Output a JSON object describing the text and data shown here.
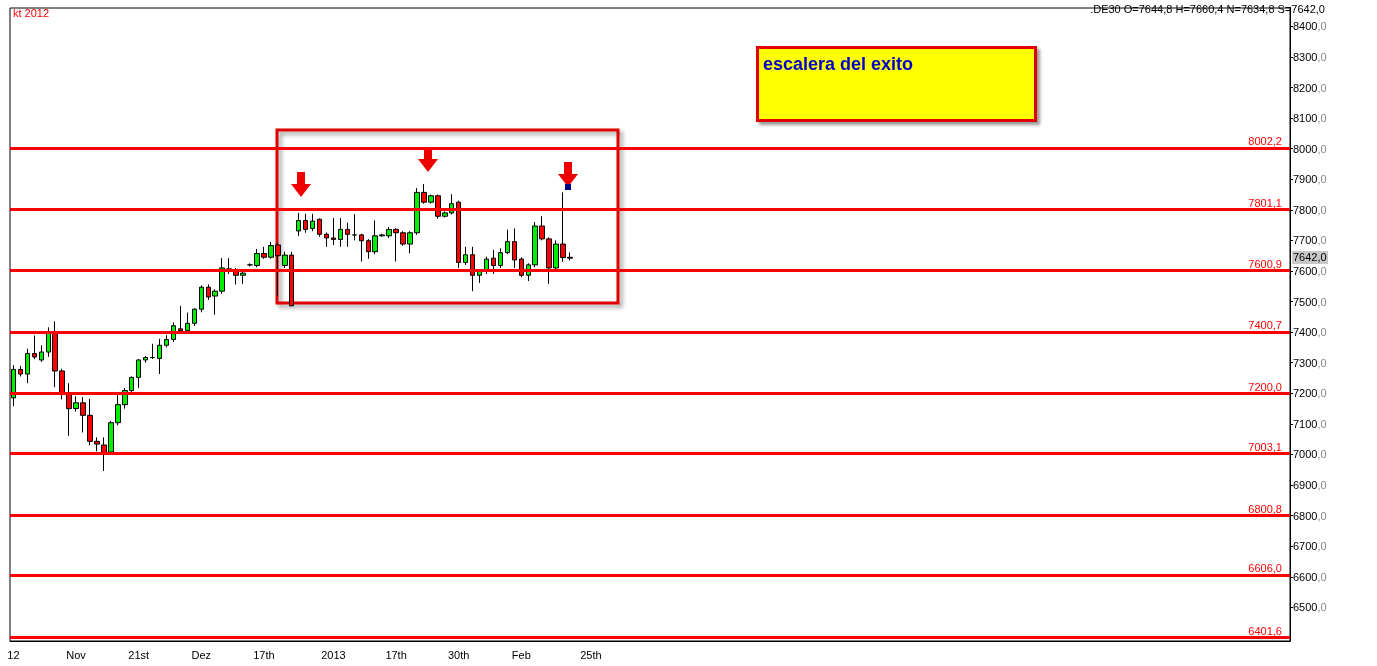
{
  "chart_data": {
    "type": "candlestick",
    "title": "kt 2012",
    "annotations": [
      ".DE30 O=7644,8 H=7660,4 N=7634,8 S=7642,0",
      "escalera del exito",
      {
        "text": "7642,0",
        "y": 7642
      }
    ],
    "categories": [
      "12",
      null,
      null,
      null,
      null,
      null,
      null,
      null,
      null,
      "Nov",
      null,
      null,
      null,
      null,
      null,
      null,
      null,
      null,
      "21st",
      null,
      null,
      null,
      null,
      null,
      null,
      null,
      null,
      "Dez",
      null,
      null,
      null,
      null,
      null,
      null,
      null,
      null,
      "17th",
      null,
      null,
      null,
      null,
      null,
      null,
      null,
      null,
      null,
      "2013",
      null,
      null,
      null,
      null,
      null,
      null,
      null,
      null,
      "17th",
      null,
      null,
      null,
      null,
      null,
      null,
      null,
      null,
      "30th",
      null,
      null,
      null,
      null,
      null,
      null,
      null,
      null,
      "Feb",
      null,
      null,
      null,
      null,
      null,
      null,
      null,
      null,
      null,
      "25th",
      null,
      null,
      null,
      null,
      null,
      null,
      null,
      null,
      null,
      null,
      null,
      null,
      null,
      null,
      null,
      null,
      null,
      null,
      null,
      null,
      null,
      null,
      null,
      null,
      null,
      null,
      null,
      null,
      null,
      null,
      null,
      null,
      null,
      null,
      null,
      null,
      null,
      null,
      null,
      null,
      null,
      null,
      null,
      null,
      null,
      null,
      null,
      null,
      null,
      null,
      null,
      null,
      null,
      null,
      null,
      null,
      null,
      null,
      null,
      null,
      null,
      null,
      null,
      null,
      null,
      null,
      null,
      null,
      null,
      null,
      null,
      null,
      null,
      null,
      null,
      null,
      null,
      null,
      null,
      null,
      null,
      null,
      null,
      null,
      null,
      null,
      null,
      null,
      null,
      null,
      null,
      null,
      null,
      null,
      null,
      null,
      null,
      null,
      null,
      null
    ],
    "ohlc": [
      [
        7185,
        7292,
        7158,
        7278
      ],
      [
        7278,
        7290,
        7255,
        7263
      ],
      [
        7263,
        7346,
        7233,
        7330
      ],
      [
        7330,
        7389,
        7312,
        7319
      ],
      [
        7309,
        7357,
        7303,
        7335
      ],
      [
        7335,
        7416,
        7319,
        7400
      ],
      [
        7400,
        7435,
        7220,
        7273
      ],
      [
        7273,
        7280,
        7180,
        7201
      ],
      [
        7201,
        7233,
        7061,
        7150
      ],
      [
        7150,
        7190,
        7140,
        7169
      ],
      [
        7169,
        7188,
        7072,
        7128
      ],
      [
        7128,
        7182,
        7030,
        7043
      ],
      [
        7043,
        7056,
        7010,
        7034
      ],
      [
        7031,
        7056,
        6946,
        7002
      ],
      [
        7008,
        7110,
        7000,
        7104
      ],
      [
        7104,
        7196,
        7095,
        7163
      ],
      [
        7163,
        7217,
        7150,
        7209
      ],
      [
        7209,
        7255,
        7200,
        7252
      ],
      [
        7252,
        7312,
        7217,
        7309
      ],
      [
        7309,
        7322,
        7300,
        7317
      ],
      [
        7317,
        7362,
        7312,
        7317
      ],
      [
        7314,
        7378,
        7263,
        7357
      ],
      [
        7357,
        7390,
        7350,
        7376
      ],
      [
        7376,
        7432,
        7368,
        7421
      ],
      [
        7411,
        7486,
        7400,
        7405
      ],
      [
        7405,
        7464,
        7400,
        7429
      ],
      [
        7429,
        7478,
        7420,
        7475
      ],
      [
        7475,
        7553,
        7465,
        7547
      ],
      [
        7547,
        7556,
        7505,
        7515
      ],
      [
        7518,
        7540,
        7457,
        7534
      ],
      [
        7534,
        7642,
        7525,
        7610
      ],
      [
        7607,
        7642,
        7590,
        7599
      ],
      [
        7599,
        7610,
        7556,
        7586
      ],
      [
        7586,
        7600,
        7558,
        7593
      ],
      [
        7620,
        7625,
        7615,
        7620
      ],
      [
        7618,
        7672,
        7612,
        7657
      ],
      [
        7657,
        7679,
        7640,
        7645
      ],
      [
        7645,
        7695,
        7640,
        7683
      ],
      [
        7685,
        7692,
        7518,
        7650
      ],
      [
        7618,
        7663,
        7610,
        7652
      ],
      [
        7652,
        7663,
        7486,
        7486
      ],
      [
        7731,
        7790,
        7714,
        7765
      ],
      [
        7765,
        7787,
        7725,
        7736
      ],
      [
        7739,
        7787,
        7730,
        7763
      ],
      [
        7769,
        7772,
        7712,
        7720
      ],
      [
        7720,
        7726,
        7679,
        7708
      ],
      [
        7708,
        7773,
        7685,
        7703
      ],
      [
        7703,
        7773,
        7679,
        7736
      ],
      [
        7736,
        7758,
        7679,
        7720
      ],
      [
        7718,
        7786,
        7700,
        7718
      ],
      [
        7718,
        7722,
        7631,
        7699
      ],
      [
        7699,
        7704,
        7640,
        7663
      ],
      [
        7663,
        7765,
        7655,
        7715
      ],
      [
        7715,
        7722,
        7712,
        7718
      ],
      [
        7715,
        7744,
        7708,
        7736
      ],
      [
        7736,
        7740,
        7631,
        7725
      ],
      [
        7725,
        7730,
        7682,
        7688
      ],
      [
        7688,
        7730,
        7658,
        7725
      ],
      [
        7725,
        7871,
        7718,
        7857
      ],
      [
        7857,
        7884,
        7820,
        7825
      ],
      [
        7825,
        7850,
        7820,
        7846
      ],
      [
        7846,
        7850,
        7771,
        7779
      ],
      [
        7779,
        7795,
        7775,
        7790
      ],
      [
        7790,
        7851,
        7785,
        7820
      ],
      [
        7825,
        7830,
        7610,
        7628
      ],
      [
        7628,
        7679,
        7620,
        7653
      ],
      [
        7653,
        7679,
        7534,
        7586
      ],
      [
        7586,
        7605,
        7561,
        7599
      ],
      [
        7599,
        7647,
        7590,
        7639
      ],
      [
        7642,
        7669,
        7590,
        7618
      ],
      [
        7618,
        7674,
        7610,
        7660
      ],
      [
        7660,
        7735,
        7655,
        7696
      ],
      [
        7696,
        7739,
        7610,
        7636
      ],
      [
        7639,
        7645,
        7580,
        7586
      ],
      [
        7586,
        7625,
        7567,
        7620
      ],
      [
        7620,
        7760,
        7612,
        7747
      ],
      [
        7747,
        7779,
        7700,
        7705
      ],
      [
        7705,
        7710,
        7558,
        7610
      ],
      [
        7610,
        7700,
        7600,
        7688
      ],
      [
        7688,
        7857,
        7630,
        7644
      ],
      [
        7644.8,
        7660.4,
        7634.8,
        7642.0
      ],
      null,
      null,
      null,
      null,
      null,
      null,
      null,
      null,
      null,
      null,
      null,
      null,
      null,
      null,
      null,
      null,
      null,
      null,
      null,
      null,
      null,
      null,
      null,
      null,
      null,
      null,
      null,
      null,
      null,
      null,
      null,
      null,
      null,
      null,
      null,
      null,
      null,
      null,
      null,
      null,
      null,
      null,
      null,
      null,
      null,
      null,
      null,
      null,
      null,
      null,
      null,
      null,
      null,
      null,
      null,
      null,
      null,
      null,
      null,
      null,
      null,
      null,
      null,
      null,
      null,
      null,
      null,
      null,
      null,
      null,
      null,
      null,
      null,
      null,
      null,
      null,
      null,
      null,
      null,
      null,
      null,
      null,
      null,
      null,
      null,
      null,
      null,
      null,
      null,
      null,
      null,
      null,
      null,
      null,
      null,
      null,
      null,
      null,
      null,
      null,
      null,
      null,
      null
    ],
    "ylim": [
      6390,
      8460
    ],
    "yticks": [
      {
        "value": 6500,
        "label": "6500,0"
      },
      {
        "value": 6600,
        "label": "6600,0"
      },
      {
        "value": 6700,
        "label": "6700,0"
      },
      {
        "value": 6800,
        "label": "6800,0"
      },
      {
        "value": 6900,
        "label": "6900,0"
      },
      {
        "value": 7000,
        "label": "7000,0"
      },
      {
        "value": 7100,
        "label": "7100,0"
      },
      {
        "value": 7200,
        "label": "7200,0"
      },
      {
        "value": 7300,
        "label": "7300,0"
      },
      {
        "value": 7400,
        "label": "7400,0"
      },
      {
        "value": 7500,
        "label": "7500,0"
      },
      {
        "value": 7600,
        "label": "7600,0"
      },
      {
        "value": 7700,
        "label": "7700,0"
      },
      {
        "value": 7800,
        "label": "7800,0"
      },
      {
        "value": 7900,
        "label": "7900,0"
      },
      {
        "value": 8000,
        "label": "8000,0"
      },
      {
        "value": 8100,
        "label": "8100,0"
      },
      {
        "value": 8200,
        "label": "8200,0"
      },
      {
        "value": 8300,
        "label": "8300,0"
      },
      {
        "value": 8400,
        "label": "8400,0"
      }
    ],
    "ref_lines": [
      {
        "axis": "y",
        "value": 8002.2,
        "label": "8002,2",
        "color": "#ff0000"
      },
      {
        "axis": "y",
        "value": 7801.1,
        "label": "7801,1",
        "color": "#ff0000"
      },
      {
        "axis": "y",
        "value": 7600.9,
        "label": "7600,9",
        "color": "#ff0000"
      },
      {
        "axis": "y",
        "value": 7400.7,
        "label": "7400,7",
        "color": "#ff0000"
      },
      {
        "axis": "y",
        "value": 7200.0,
        "label": "7200,0",
        "color": "#ff0000"
      },
      {
        "axis": "y",
        "value": 7003.1,
        "label": "7003,1",
        "color": "#ff0000"
      },
      {
        "axis": "y",
        "value": 6800.8,
        "label": "6800,8",
        "color": "#ff0000"
      },
      {
        "axis": "y",
        "value": 6606.0,
        "label": "6606,0",
        "color": "#ff0000"
      },
      {
        "axis": "y",
        "value": 6401.6,
        "label": "6401,6",
        "color": "#ff0000"
      }
    ],
    "grid": false
  }
}
